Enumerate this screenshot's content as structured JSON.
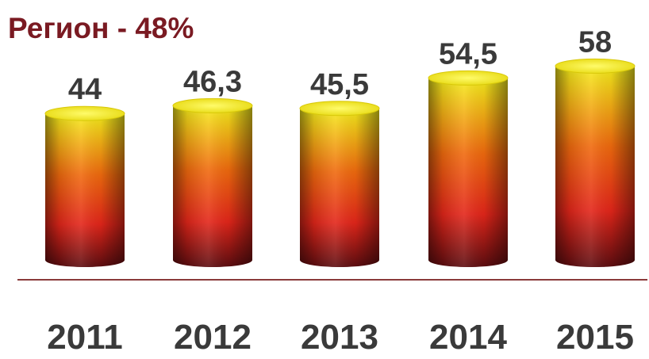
{
  "chart_data": {
    "type": "bar",
    "title": "Регион - 48%",
    "categories": [
      "2011",
      "2012",
      "2013",
      "2014",
      "2015"
    ],
    "values": [
      44,
      46.3,
      45.5,
      54.5,
      58
    ],
    "value_labels": [
      "44",
      "46,3",
      "45,5",
      "54,5",
      "58"
    ],
    "xlabel": "",
    "ylabel": "",
    "legend": "none",
    "grid": false,
    "colors": {
      "title": "#7a1a22",
      "bar_top": "#f5ee1c",
      "bar_mid": "#f06a0e",
      "bar_low": "#e3261a",
      "bar_bottom": "#5e0d10",
      "baseline": "#8a3a3a",
      "label": "#3a3a3a"
    }
  }
}
